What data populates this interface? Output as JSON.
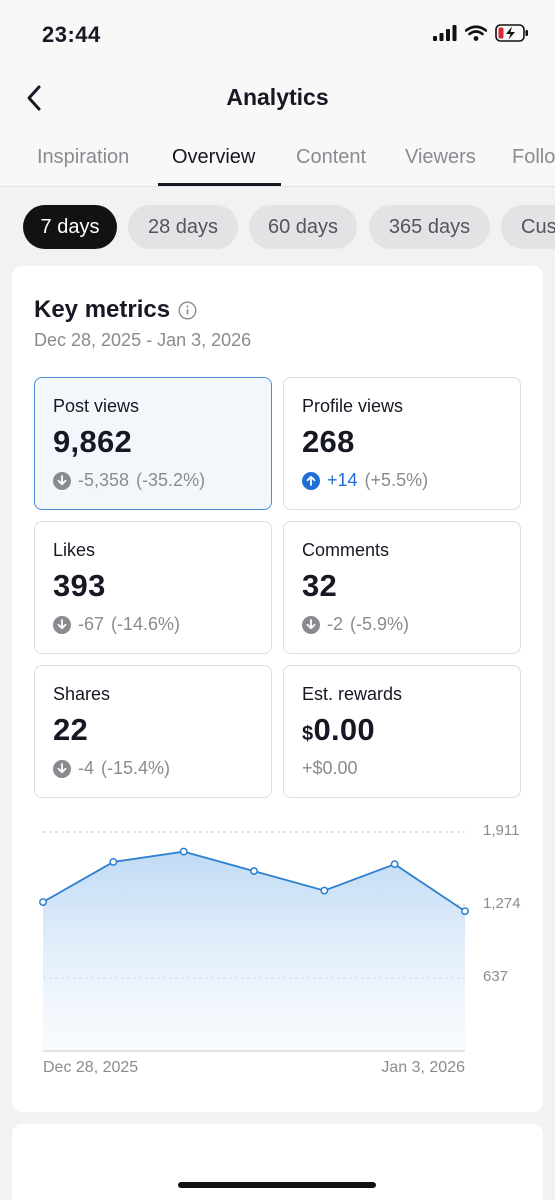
{
  "status": {
    "time": "23:44"
  },
  "header": {
    "title": "Analytics"
  },
  "tabs": [
    {
      "label": "Inspiration"
    },
    {
      "label": "Overview"
    },
    {
      "label": "Content"
    },
    {
      "label": "Viewers"
    },
    {
      "label": "Followers"
    }
  ],
  "ranges": [
    {
      "label": "7 days"
    },
    {
      "label": "28 days"
    },
    {
      "label": "60 days"
    },
    {
      "label": "365 days"
    },
    {
      "label": "Custom"
    }
  ],
  "key_metrics": {
    "title": "Key metrics",
    "date_range": "Dec 28, 2025 - Jan 3, 2026"
  },
  "metrics": [
    {
      "label": "Post views",
      "value": "9,862",
      "change": "-5,358",
      "pct": "(-35.2%)",
      "direction": "down"
    },
    {
      "label": "Profile views",
      "value": "268",
      "change": "+14",
      "pct": "(+5.5%)",
      "direction": "up"
    },
    {
      "label": "Likes",
      "value": "393",
      "change": "-67",
      "pct": "(-14.6%)",
      "direction": "down"
    },
    {
      "label": "Comments",
      "value": "32",
      "change": "-2",
      "pct": "(-5.9%)",
      "direction": "down"
    },
    {
      "label": "Shares",
      "value": "22",
      "change": "-4",
      "pct": "(-15.4%)",
      "direction": "down"
    },
    {
      "label": "Est. rewards",
      "currency": "$",
      "value": "0.00",
      "change": "+$0.00",
      "direction": "none"
    }
  ],
  "colors": {
    "accent": "#1f6fd6",
    "line": "#2b7fd1",
    "selected_bg": "#f3f7fc"
  },
  "chart_data": {
    "type": "area",
    "x": [
      "Dec 28, 2025",
      "Dec 29, 2025",
      "Dec 30, 2025",
      "Dec 31, 2025",
      "Jan 1, 2026",
      "Jan 2, 2026",
      "Jan 3, 2026"
    ],
    "series": [
      {
        "values": [
          1300,
          1650,
          1740,
          1570,
          1400,
          1630,
          1220
        ]
      }
    ],
    "yticks": [
      637,
      1274,
      1911
    ],
    "ytick_labels": [
      "637",
      "1,274",
      "1,911"
    ],
    "ylim": [
      0,
      1911
    ],
    "xtick_labels": [
      "Dec 28, 2025",
      "Jan 3, 2026"
    ],
    "grid": true
  }
}
